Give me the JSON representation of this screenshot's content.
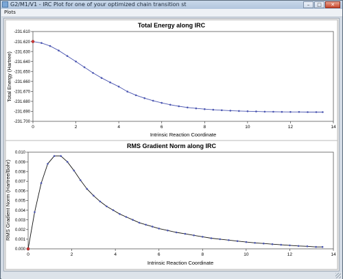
{
  "window": {
    "title": "G2/M1/V1 - IRC Plot for one of your optimized chain transition st"
  },
  "menu": {
    "items": [
      "Plots"
    ]
  },
  "charts": [
    {
      "title": "Total Energy along IRC",
      "xlabel": "Intrinsic Reaction Coordinate",
      "ylabel": "Total Energy (Hartree)",
      "y_ticks": [
        "-231.610",
        "-231.620",
        "-231.630",
        "-231.640",
        "-231.650",
        "-231.660",
        "-231.670",
        "-231.680",
        "-231.690",
        "-231.700"
      ],
      "x_ticks": [
        "0",
        "2",
        "4",
        "6",
        "8",
        "10",
        "12",
        "14"
      ]
    },
    {
      "title": "RMS Gradient Norm along IRC",
      "xlabel": "Intrinsic Reaction Coordinate",
      "ylabel": "RMS Gradient Norm (Hartree/Bohr)",
      "y_ticks": [
        "0.010",
        "0.009",
        "0.008",
        "0.007",
        "0.006",
        "0.005",
        "0.004",
        "0.003",
        "0.002",
        "0.001",
        "0.000"
      ],
      "x_ticks": [
        "0",
        "2",
        "4",
        "6",
        "8",
        "10",
        "12",
        "14"
      ]
    }
  ],
  "chart_data": [
    {
      "type": "line",
      "title": "Total Energy along IRC",
      "xlabel": "Intrinsic Reaction Coordinate",
      "ylabel": "Total Energy (Hartree)",
      "xlim": [
        0,
        14
      ],
      "ylim": [
        -231.7,
        -231.61
      ],
      "grid": false,
      "legend": "none",
      "colors": {
        "line": "#4a55b0",
        "marker": "#4a55b0",
        "highlight": "#d23a3a"
      },
      "series": [
        {
          "x": [
            0.0,
            0.4,
            0.8,
            1.2,
            1.6,
            2.0,
            2.4,
            2.8,
            3.2,
            3.6,
            4.0,
            4.4,
            4.8,
            5.2,
            5.6,
            6.0,
            6.4,
            6.8,
            7.2,
            7.6,
            8.0,
            8.4,
            8.8,
            9.2,
            9.6,
            10.0,
            10.4,
            10.8,
            11.2,
            11.6,
            12.0,
            12.4,
            12.8,
            13.2,
            13.5
          ],
          "y": [
            -231.62,
            -231.6215,
            -231.6245,
            -231.629,
            -231.6345,
            -231.64,
            -231.6458,
            -231.6515,
            -231.6565,
            -231.661,
            -231.6652,
            -231.6702,
            -231.6738,
            -231.6768,
            -231.6793,
            -231.6815,
            -231.6834,
            -231.6849,
            -231.6861,
            -231.687,
            -231.6878,
            -231.6884,
            -231.6889,
            -231.6893,
            -231.6896,
            -231.6899,
            -231.6901,
            -231.6903,
            -231.6904,
            -231.6905,
            -231.6906,
            -231.6906,
            -231.6907,
            -231.6907,
            -231.6907
          ]
        }
      ]
    },
    {
      "type": "line",
      "title": "RMS Gradient Norm along IRC",
      "xlabel": "Intrinsic Reaction Coordinate",
      "ylabel": "RMS Gradient Norm (Hartree/Bohr)",
      "xlim": [
        0,
        14
      ],
      "ylim": [
        0,
        0.01
      ],
      "grid": false,
      "legend": "none",
      "colors": {
        "line": "#111111",
        "marker": "#4a55b0",
        "highlight": "#d23a3a"
      },
      "series": [
        {
          "x": [
            0.0,
            0.3,
            0.6,
            0.9,
            1.2,
            1.5,
            1.8,
            2.1,
            2.4,
            2.7,
            3.0,
            3.3,
            3.6,
            3.9,
            4.2,
            4.5,
            4.8,
            5.1,
            5.4,
            5.7,
            6.0,
            6.4,
            6.8,
            7.2,
            7.6,
            8.0,
            8.4,
            8.8,
            9.2,
            9.6,
            10.0,
            10.4,
            10.8,
            11.2,
            11.6,
            12.0,
            12.4,
            12.8,
            13.2,
            13.5
          ],
          "y": [
            0.0,
            0.0038,
            0.0068,
            0.0088,
            0.0096,
            0.0096,
            0.009,
            0.0081,
            0.0071,
            0.0062,
            0.0055,
            0.0049,
            0.0044,
            0.004,
            0.0036,
            0.0033,
            0.003,
            0.0027,
            0.0025,
            0.0023,
            0.0021,
            0.0019,
            0.0017,
            0.00155,
            0.0014,
            0.00125,
            0.0011,
            0.001,
            0.0009,
            0.0008,
            0.0007,
            0.00062,
            0.00055,
            0.00048,
            0.00042,
            0.00036,
            0.0003,
            0.00026,
            0.0002,
            0.0002
          ]
        }
      ]
    }
  ]
}
